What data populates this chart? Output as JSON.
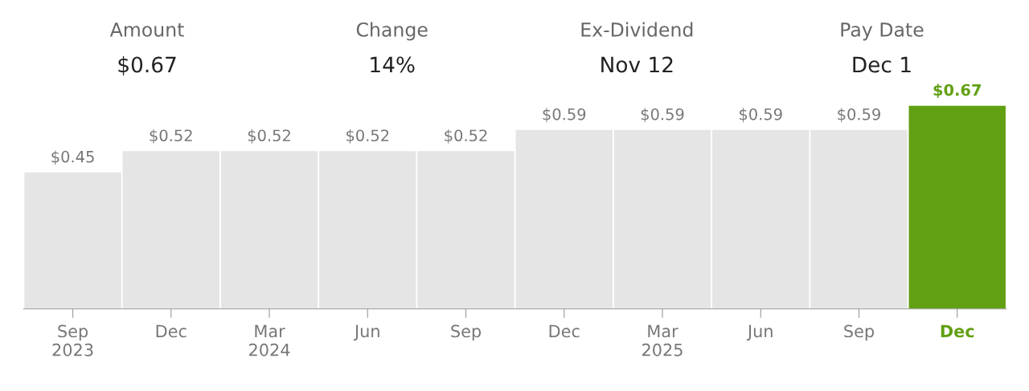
{
  "chart_data": {
    "type": "bar",
    "categories": [
      "Sep\n2023",
      "Dec",
      "Mar\n2024",
      "Jun",
      "Sep",
      "Dec",
      "Mar\n2025",
      "Jun",
      "Sep",
      "Dec"
    ],
    "values": [
      0.45,
      0.52,
      0.52,
      0.52,
      0.52,
      0.59,
      0.59,
      0.59,
      0.59,
      0.67
    ],
    "value_labels": [
      "$0.45",
      "$0.52",
      "$0.52",
      "$0.52",
      "$0.52",
      "$0.59",
      "$0.59",
      "$0.59",
      "$0.59",
      "$0.67"
    ],
    "colors": [
      "#e5e5e5",
      "#e5e5e5",
      "#e5e5e5",
      "#e5e5e5",
      "#e5e5e5",
      "#e5e5e5",
      "#e5e5e5",
      "#e5e5e5",
      "#e5e5e5",
      "#62a013"
    ],
    "annotations": [
      "Amount",
      "$0.67",
      "Change",
      "14%",
      "Ex-Dividend",
      "Nov 12",
      "Pay Date",
      "Dec 1"
    ],
    "grid": false,
    "legend": false
  }
}
